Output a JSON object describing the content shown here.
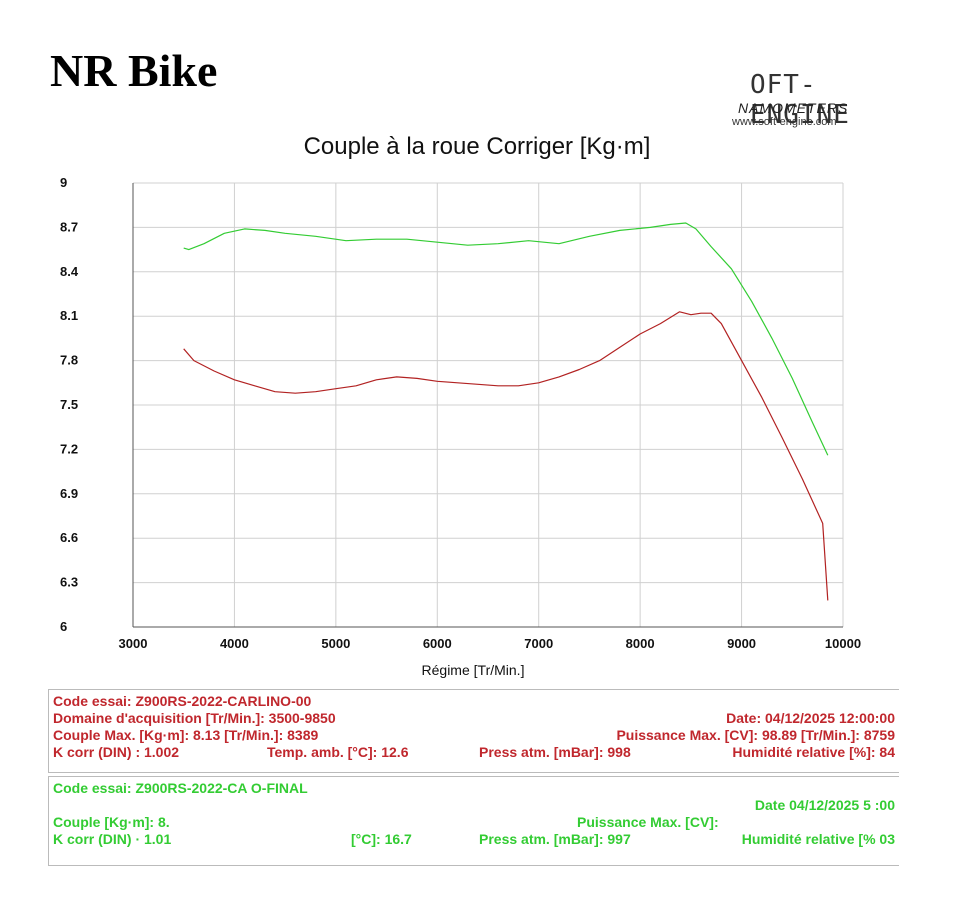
{
  "brand": "NR Bike",
  "logo": {
    "main": "OFT-ENGINE",
    "sub": "NAMOMETERS",
    "url": "www.soft-engine.com"
  },
  "chart_data": {
    "type": "line",
    "title": "Couple à la roue Corriger [Kg·m]",
    "xlabel": "Régime [Tr/Min.]",
    "ylabel": "",
    "xlim": [
      3000,
      10000
    ],
    "ylim": [
      6,
      9
    ],
    "xticks": [
      "3000",
      "4000",
      "5000",
      "6000",
      "7000",
      "8000",
      "9000",
      "10000"
    ],
    "yticks": [
      "9",
      "8.7",
      "8.4",
      "8.1",
      "7.8",
      "7.5",
      "7.2",
      "6.9",
      "6.6",
      "6.3",
      "6"
    ],
    "grid": true,
    "series": [
      {
        "color": "#b22222",
        "x": [
          3500,
          3600,
          3800,
          4000,
          4200,
          4400,
          4600,
          4800,
          5000,
          5200,
          5400,
          5600,
          5800,
          6000,
          6200,
          6400,
          6600,
          6800,
          7000,
          7200,
          7400,
          7600,
          7800,
          8000,
          8200,
          8389,
          8500,
          8600,
          8700,
          8800,
          9000,
          9200,
          9400,
          9600,
          9800,
          9850
        ],
        "y": [
          7.88,
          7.8,
          7.73,
          7.67,
          7.63,
          7.59,
          7.58,
          7.59,
          7.61,
          7.63,
          7.67,
          7.69,
          7.68,
          7.66,
          7.65,
          7.64,
          7.63,
          7.63,
          7.65,
          7.69,
          7.74,
          7.8,
          7.89,
          7.98,
          8.05,
          8.13,
          8.11,
          8.12,
          8.12,
          8.05,
          7.8,
          7.55,
          7.28,
          7.0,
          6.7,
          6.18
        ]
      },
      {
        "color": "#33cc33",
        "x": [
          3500,
          3550,
          3700,
          3900,
          4100,
          4300,
          4500,
          4800,
          5100,
          5400,
          5700,
          6000,
          6300,
          6600,
          6900,
          7200,
          7500,
          7800,
          8100,
          8300,
          8450,
          8550,
          8700,
          8900,
          9100,
          9300,
          9500,
          9700,
          9850
        ],
        "y": [
          8.56,
          8.55,
          8.59,
          8.66,
          8.69,
          8.68,
          8.66,
          8.64,
          8.61,
          8.62,
          8.62,
          8.6,
          8.58,
          8.59,
          8.61,
          8.59,
          8.64,
          8.68,
          8.7,
          8.72,
          8.73,
          8.69,
          8.57,
          8.42,
          8.2,
          7.95,
          7.68,
          7.38,
          7.16
        ]
      }
    ]
  },
  "info_red": {
    "code": "Code essai: Z900RS-2022-CARLINO-00",
    "domaine": "Domaine d'acquisition [Tr/Min.]: 3500-9850",
    "date": "Date: 04/12/2025   12:00:00",
    "couple": "Couple Max. [Kg·m]: 8.13   [Tr/Min.]: 8389",
    "puissance": "Puissance Max. [CV]: 98.89   [Tr/Min.]: 8759",
    "kcorr": "K corr (DIN) : 1.002",
    "temp": "Temp. amb. [°C]: 12.6",
    "press": "Press atm. [mBar]: 998",
    "humid": "Humidité relative [%]: 84"
  },
  "info_green": {
    "code": "Code essai: Z900RS-2022-CA     O-FINAL",
    "domaine": "",
    "date": "Date  04/12/2025   5    :00",
    "couple": "Couple      [Kg·m]: 8.",
    "puissance": "Puissance Max. [CV]:",
    "kcorr": "K corr  (DIN)  · 1.01",
    "temp": "[°C]: 16.7",
    "press": "Press atm. [mBar]: 997",
    "humid": "Humidité relative [%   03"
  }
}
